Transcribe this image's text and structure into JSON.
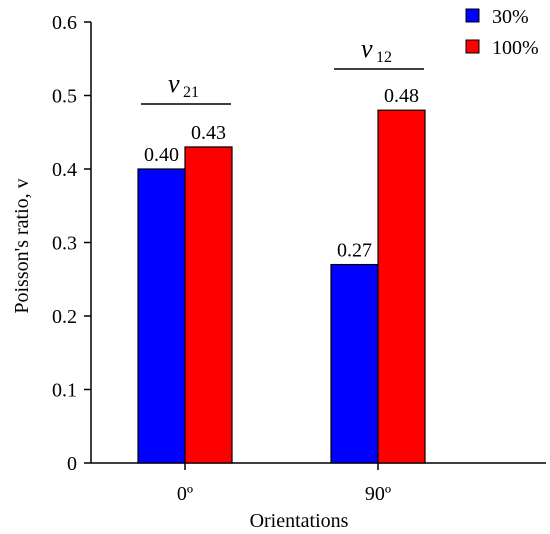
{
  "chart_data": {
    "type": "bar",
    "categories": [
      "0º",
      "90º"
    ],
    "series": [
      {
        "name": "30%",
        "values": [
          0.4,
          0.27
        ],
        "labels": [
          "0.40",
          "0.27"
        ],
        "color": "#0000ff"
      },
      {
        "name": "100%",
        "values": [
          0.43,
          0.48
        ],
        "labels": [
          "0.43",
          "0.48"
        ],
        "color": "#ff0000"
      }
    ],
    "xlabel": "Orientations",
    "ylabel": "Poisson's ratio, v",
    "ylim": [
      0,
      0.6
    ],
    "yticks": [
      "0",
      "0.1",
      "0.2",
      "0.3",
      "0.4",
      "0.5",
      "0.6"
    ],
    "grid": false,
    "legend": "top-right",
    "annotations": [
      {
        "category": "0º",
        "symbol": "ν",
        "subscript": "21"
      },
      {
        "category": "90º",
        "symbol": "ν",
        "subscript": "12"
      }
    ]
  }
}
